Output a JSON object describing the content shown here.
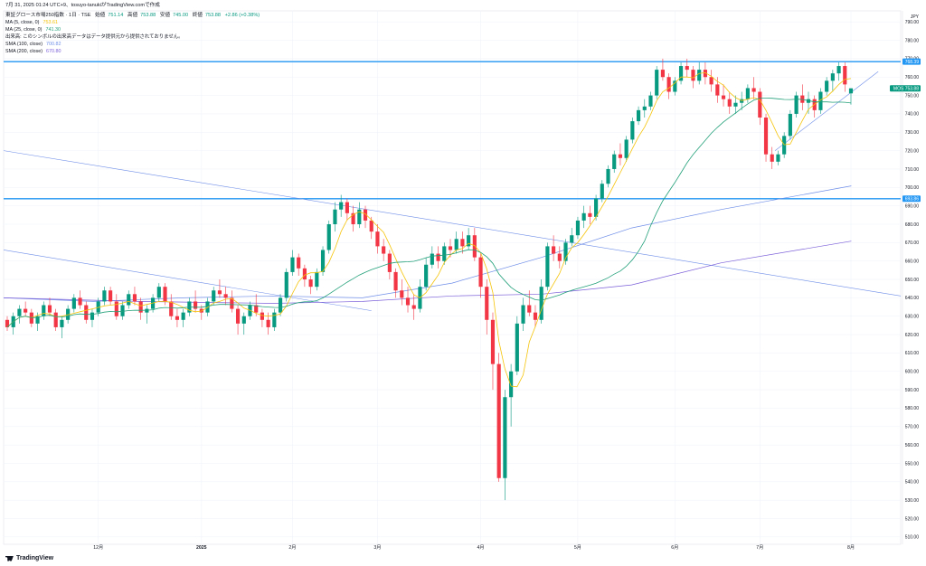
{
  "header": {
    "snapshot": "7月 31, 2025 01:24 UTC+9、tosuyo-tanukiがTradingView.comで作成",
    "symbol": "東証グロース市場250指数 · 1日 · TSE",
    "open_label": "始値",
    "open": "751.14",
    "high_label": "高値",
    "high": "753.88",
    "low_label": "安値",
    "low": "745.00",
    "close_label": "終値",
    "close": "753.88",
    "change": "+2.86 (+0.38%)"
  },
  "indicators": [
    {
      "label": "MA (5, close, 0)",
      "value": "753.61",
      "color": "#f5c40a"
    },
    {
      "label": "MA (25, close, 0)",
      "value": "741.30",
      "color": "#22a079"
    },
    {
      "label": "出来高: このシンボルの出来高データはデータ提供元から提供されておりません。",
      "value": "",
      "color": "#131722"
    },
    {
      "label": "SMA (100, close)",
      "value": "700.82",
      "color": "#6f8ee8"
    },
    {
      "label": "SMA (200, close)",
      "value": "670.80",
      "color": "#7b5fd9"
    }
  ],
  "brand": "TradingView",
  "chart_data": {
    "type": "candlestick",
    "currency": "JPY",
    "ylim": [
      510,
      800
    ],
    "y_ticks": [
      510,
      520,
      530,
      540,
      550,
      560,
      570,
      580,
      590,
      600,
      610,
      620,
      630,
      640,
      650,
      660,
      670,
      680,
      690,
      700,
      710,
      720,
      730,
      740,
      750,
      760,
      770,
      780,
      790
    ],
    "x_ticks": [
      "12月",
      "2025",
      "2月",
      "3月",
      "4月",
      "5月",
      "6月",
      "7月",
      "8月"
    ],
    "price_labels": [
      {
        "value": "768.39",
        "label": "768.39",
        "color": "#2196f3"
      },
      {
        "value": "753.88",
        "label": "MOS 753.88",
        "color": "#089981"
      },
      {
        "value": "693.86",
        "label": "693.86",
        "color": "#2196f3"
      }
    ],
    "horizontal_lines": [
      768.39,
      693.86
    ],
    "candles": [
      [
        628,
        630,
        622,
        624
      ],
      [
        624,
        632,
        620,
        630
      ],
      [
        630,
        636,
        626,
        634
      ],
      [
        634,
        638,
        630,
        632
      ],
      [
        632,
        634,
        624,
        626
      ],
      [
        626,
        632,
        622,
        630
      ],
      [
        630,
        638,
        628,
        636
      ],
      [
        636,
        640,
        630,
        632
      ],
      [
        632,
        634,
        622,
        624
      ],
      [
        624,
        630,
        618,
        628
      ],
      [
        628,
        636,
        626,
        634
      ],
      [
        634,
        642,
        632,
        640
      ],
      [
        640,
        644,
        634,
        636
      ],
      [
        636,
        638,
        626,
        628
      ],
      [
        628,
        634,
        624,
        632
      ],
      [
        632,
        640,
        630,
        638
      ],
      [
        638,
        646,
        636,
        644
      ],
      [
        644,
        646,
        636,
        638
      ],
      [
        638,
        642,
        628,
        630
      ],
      [
        630,
        638,
        628,
        636
      ],
      [
        636,
        644,
        634,
        642
      ],
      [
        642,
        646,
        636,
        638
      ],
      [
        638,
        640,
        628,
        632
      ],
      [
        632,
        636,
        626,
        634
      ],
      [
        634,
        642,
        632,
        640
      ],
      [
        640,
        648,
        638,
        646
      ],
      [
        646,
        648,
        636,
        638
      ],
      [
        638,
        642,
        628,
        630
      ],
      [
        630,
        634,
        624,
        628
      ],
      [
        628,
        634,
        624,
        632
      ],
      [
        632,
        640,
        630,
        638
      ],
      [
        638,
        644,
        632,
        634
      ],
      [
        634,
        636,
        628,
        632
      ],
      [
        632,
        640,
        630,
        638
      ],
      [
        638,
        646,
        636,
        644
      ],
      [
        644,
        650,
        640,
        642
      ],
      [
        642,
        646,
        636,
        640
      ],
      [
        640,
        644,
        632,
        634
      ],
      [
        634,
        636,
        620,
        626
      ],
      [
        626,
        632,
        620,
        630
      ],
      [
        630,
        638,
        628,
        636
      ],
      [
        636,
        642,
        630,
        632
      ],
      [
        632,
        634,
        624,
        628
      ],
      [
        628,
        632,
        620,
        624
      ],
      [
        624,
        634,
        622,
        632
      ],
      [
        632,
        642,
        630,
        640
      ],
      [
        640,
        656,
        638,
        654
      ],
      [
        654,
        666,
        652,
        662
      ],
      [
        662,
        664,
        652,
        656
      ],
      [
        656,
        658,
        646,
        650
      ],
      [
        650,
        652,
        642,
        646
      ],
      [
        646,
        656,
        644,
        654
      ],
      [
        654,
        668,
        652,
        666
      ],
      [
        666,
        682,
        664,
        680
      ],
      [
        680,
        692,
        676,
        688
      ],
      [
        688,
        696,
        684,
        692
      ],
      [
        692,
        694,
        682,
        686
      ],
      [
        686,
        690,
        676,
        680
      ],
      [
        680,
        692,
        678,
        688
      ],
      [
        688,
        690,
        678,
        682
      ],
      [
        682,
        684,
        672,
        676
      ],
      [
        676,
        680,
        664,
        668
      ],
      [
        668,
        672,
        660,
        664
      ],
      [
        664,
        666,
        650,
        654
      ],
      [
        654,
        656,
        640,
        644
      ],
      [
        644,
        650,
        636,
        640
      ],
      [
        640,
        646,
        632,
        636
      ],
      [
        636,
        642,
        628,
        634
      ],
      [
        634,
        650,
        632,
        646
      ],
      [
        646,
        662,
        644,
        658
      ],
      [
        658,
        668,
        656,
        664
      ],
      [
        664,
        668,
        656,
        660
      ],
      [
        660,
        670,
        658,
        668
      ],
      [
        668,
        672,
        662,
        666
      ],
      [
        666,
        676,
        664,
        672
      ],
      [
        672,
        676,
        664,
        668
      ],
      [
        668,
        678,
        666,
        674
      ],
      [
        674,
        678,
        660,
        662
      ],
      [
        662,
        664,
        640,
        646
      ],
      [
        646,
        650,
        620,
        628
      ],
      [
        628,
        632,
        590,
        604
      ],
      [
        604,
        610,
        540,
        542
      ],
      [
        542,
        590,
        530,
        586
      ],
      [
        586,
        604,
        570,
        600
      ],
      [
        600,
        630,
        598,
        626
      ],
      [
        626,
        640,
        622,
        636
      ],
      [
        636,
        644,
        630,
        632
      ],
      [
        632,
        636,
        624,
        628
      ],
      [
        628,
        650,
        626,
        646
      ],
      [
        646,
        670,
        644,
        668
      ],
      [
        668,
        674,
        660,
        664
      ],
      [
        664,
        668,
        656,
        660
      ],
      [
        660,
        672,
        658,
        670
      ],
      [
        670,
        678,
        668,
        674
      ],
      [
        674,
        684,
        672,
        682
      ],
      [
        682,
        690,
        678,
        686
      ],
      [
        686,
        690,
        680,
        684
      ],
      [
        684,
        696,
        682,
        694
      ],
      [
        694,
        704,
        692,
        702
      ],
      [
        702,
        712,
        700,
        710
      ],
      [
        710,
        720,
        708,
        718
      ],
      [
        718,
        724,
        712,
        716
      ],
      [
        716,
        728,
        714,
        726
      ],
      [
        726,
        738,
        724,
        736
      ],
      [
        736,
        744,
        734,
        742
      ],
      [
        742,
        748,
        738,
        744
      ],
      [
        744,
        752,
        742,
        750
      ],
      [
        750,
        766,
        748,
        764
      ],
      [
        764,
        770,
        758,
        760
      ],
      [
        760,
        762,
        748,
        752
      ],
      [
        752,
        760,
        750,
        758
      ],
      [
        758,
        768,
        756,
        766
      ],
      [
        766,
        770,
        760,
        764
      ],
      [
        764,
        766,
        754,
        758
      ],
      [
        758,
        768,
        756,
        764
      ],
      [
        764,
        768,
        756,
        760
      ],
      [
        760,
        764,
        752,
        756
      ],
      [
        756,
        760,
        746,
        750
      ],
      [
        750,
        756,
        744,
        748
      ],
      [
        748,
        752,
        740,
        744
      ],
      [
        744,
        750,
        740,
        746
      ],
      [
        746,
        752,
        742,
        748
      ],
      [
        748,
        756,
        746,
        754
      ],
      [
        754,
        760,
        748,
        752
      ],
      [
        752,
        754,
        734,
        738
      ],
      [
        738,
        740,
        714,
        718
      ],
      [
        718,
        722,
        710,
        714
      ],
      [
        714,
        720,
        712,
        718
      ],
      [
        718,
        730,
        716,
        728
      ],
      [
        728,
        742,
        726,
        740
      ],
      [
        740,
        752,
        738,
        750
      ],
      [
        750,
        756,
        742,
        746
      ],
      [
        746,
        752,
        740,
        748
      ],
      [
        748,
        750,
        738,
        742
      ],
      [
        742,
        754,
        740,
        752
      ],
      [
        752,
        760,
        750,
        758
      ],
      [
        758,
        764,
        752,
        762
      ],
      [
        762,
        768,
        758,
        766
      ],
      [
        766,
        768,
        752,
        756
      ],
      [
        751.14,
        753.88,
        745.0,
        753.88
      ]
    ],
    "ma5_color": "#f5c40a",
    "ma25_color": "#22a079",
    "sma100": [
      [
        0,
        640
      ],
      [
        100,
        638
      ],
      [
        200,
        640
      ],
      [
        300,
        641
      ],
      [
        400,
        640
      ],
      [
        500,
        648
      ],
      [
        600,
        662
      ],
      [
        700,
        678
      ],
      [
        800,
        688
      ],
      [
        945,
        700.82
      ]
    ],
    "sma200": [
      [
        0,
        640
      ],
      [
        150,
        638
      ],
      [
        300,
        637
      ],
      [
        400,
        638
      ],
      [
        500,
        641
      ],
      [
        600,
        642
      ],
      [
        700,
        647
      ],
      [
        800,
        659
      ],
      [
        945,
        670.8
      ]
    ],
    "sma100_color": "#6f8ee8",
    "sma200_color": "#7b5fd9",
    "trendlines": [
      {
        "from": [
          0,
          720
        ],
        "to": [
          1000,
          641
        ],
        "color": "#6f8ee8"
      },
      {
        "from": [
          0,
          666
        ],
        "to": [
          410,
          633
        ],
        "color": "#6f8ee8"
      },
      {
        "from": [
          860,
          720
        ],
        "to": [
          975,
          763
        ],
        "color": "#6f8ee8"
      }
    ]
  }
}
